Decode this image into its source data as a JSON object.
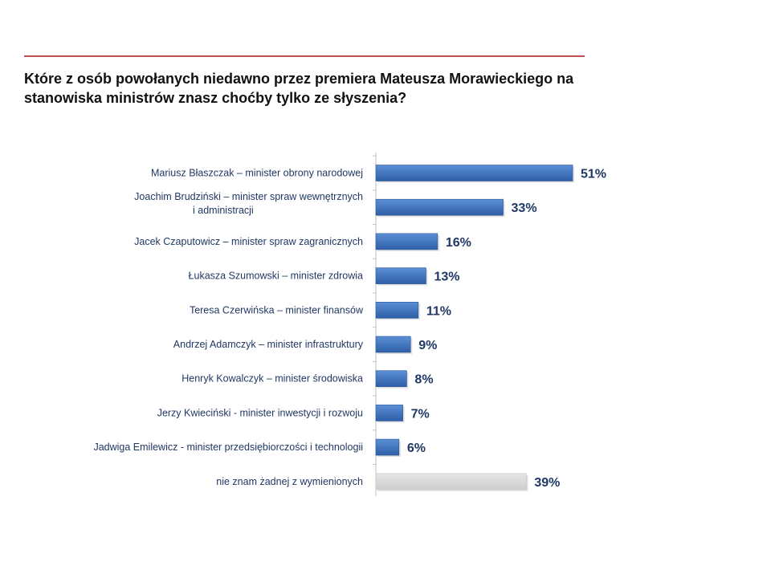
{
  "question": "Które z osób powołanych niedawno przez premiera Mateusza Morawieckiego na stanowiska ministrów znasz choćby tylko ze słyszenia?",
  "colors": {
    "accent_rule": "#c0504d",
    "bar": "#3a6db8",
    "bar_other": "#d9d9d9",
    "axis": "#bfbfbf",
    "label_text": "#1f3864",
    "value_text": "#1f3864"
  },
  "chart_data": {
    "type": "bar",
    "orientation": "horizontal",
    "title": "Które z osób powołanych niedawno przez premiera Mateusza Morawieckiego na stanowiska ministrów znasz choćby tylko ze słyszenia?",
    "xlabel": "",
    "ylabel": "",
    "xlim": [
      0,
      60
    ],
    "grid": false,
    "unit": "%",
    "categories": [
      [
        "Mariusz Błaszczak – minister obrony narodowej"
      ],
      [
        "Joachim Brudziński – minister spraw wewnętrznych",
        "i administracji"
      ],
      [
        "Jacek Czaputowicz – minister spraw zagranicznych"
      ],
      [
        "Łukasza Szumowski – minister zdrowia"
      ],
      [
        "Teresa Czerwińska – minister finansów"
      ],
      [
        "Andrzej Adamczyk – minister infrastruktury"
      ],
      [
        "Henryk Kowalczyk – minister środowiska"
      ],
      [
        "Jerzy Kwieciński - minister inwestycji i rozwoju"
      ],
      [
        "Jadwiga Emilewicz - minister przedsiębiorczości i technologii"
      ],
      [
        "nie znam żadnej z wymienionych"
      ]
    ],
    "values": [
      51,
      33,
      16,
      13,
      11,
      9,
      8,
      7,
      6,
      39
    ],
    "value_labels": [
      "51%",
      "33%",
      "16%",
      "13%",
      "11%",
      "9%",
      "8%",
      "7%",
      "6%",
      "39%"
    ],
    "highlight": [
      false,
      false,
      false,
      false,
      false,
      false,
      false,
      false,
      false,
      true
    ]
  }
}
